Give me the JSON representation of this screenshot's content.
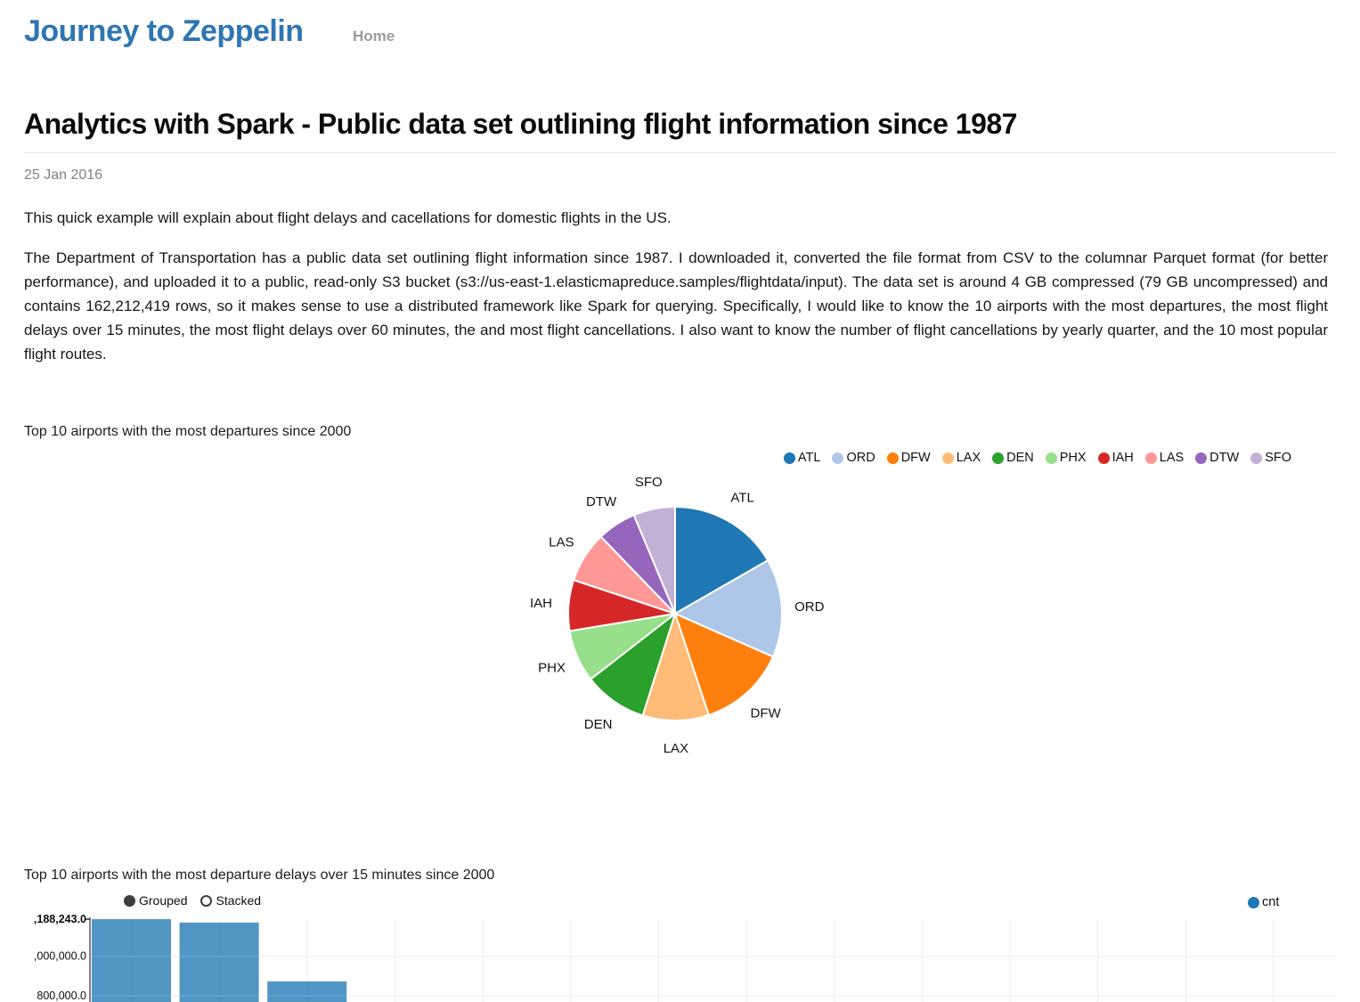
{
  "header": {
    "site_title": "Journey to Zeppelin",
    "nav_home": "Home"
  },
  "article": {
    "title": "Analytics with Spark - Public data set outlining flight information since 1987",
    "date": "25 Jan 2016",
    "paragraphs": [
      "This quick example will explain about flight delays and cacellations for domestic flights in the US.",
      "The Department of Transportation has a public data set outlining flight information since 1987. I downloaded it, converted the file format from CSV to the columnar Parquet format (for better performance), and uploaded it to a public, read-only S3 bucket (s3://us-east-1.elasticmapreduce.samples/flightdata/input). The data set is around 4 GB compressed (79 GB uncompressed) and contains 162,212,419 rows, so it makes sense to use a distributed framework like Spark for querying. Specifically, I would like to know the 10 airports with the most departures, the most flight delays over 15 minutes, the most flight delays over 60 minutes, the and most flight cancellations. I also want to know the number of flight cancellations by yearly quarter, and the 10 most popular flight routes."
    ]
  },
  "colors": {
    "brand_blue": "#2e76b3",
    "muted_gray": "#828282",
    "bar_blue": "#1f77b4",
    "grid_gray": "#e8e8e8"
  },
  "chart_data": [
    {
      "type": "pie",
      "title": "Top 10 airports with the most departures since 2000",
      "labels": [
        "ATL",
        "ORD",
        "DFW",
        "LAX",
        "DEN",
        "PHX",
        "IAH",
        "LAS",
        "DTW",
        "SFO"
      ],
      "values": [
        16.7,
        14.9,
        13.3,
        10.0,
        9.6,
        7.9,
        7.7,
        7.7,
        5.9,
        6.3
      ],
      "values_unit": "percent of pie, estimated from slice angles (numeric values not displayed)",
      "colors": [
        "#1f77b4",
        "#aec7e8",
        "#ff7f0e",
        "#ffbb78",
        "#2ca02c",
        "#98df8a",
        "#d62728",
        "#ff9896",
        "#9467bd",
        "#c5b0d5"
      ],
      "legend_position": "top-right"
    },
    {
      "type": "bar",
      "title": "Top 10 airports with the most departure delays over 15 minutes since 2000",
      "series": [
        {
          "name": "cnt",
          "values": [
            1188243,
            1171000,
            873000
          ]
        }
      ],
      "categories": [
        "",
        "",
        ""
      ],
      "categories_note": "x-axis labels cropped at bottom of screenshot; only first 3 of 10 bars visible",
      "y_ticks_shown": [
        ",188,243.0",
        ",000,000.0",
        "800,000.0"
      ],
      "y_tick_values": [
        1188243,
        1000000,
        800000
      ],
      "controls": [
        "Grouped",
        "Stacked"
      ],
      "selected_control": "Grouped",
      "bar_color": "#1f77b4",
      "bar_opacity": 0.78,
      "grid": true,
      "legend_position": "top-right"
    }
  ]
}
